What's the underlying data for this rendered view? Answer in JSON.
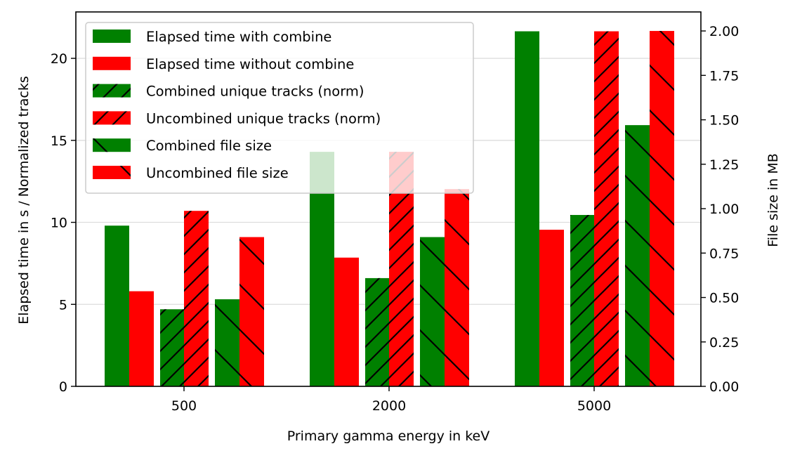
{
  "chart_data": {
    "type": "bar",
    "title": "",
    "xlabel": "Primary gamma energy in keV",
    "ylabel": "Elapsed time in s / Normalized tracks",
    "y2label": "File size in MB",
    "categories": [
      "500",
      "2000",
      "5000"
    ],
    "ylim": [
      0,
      22.83
    ],
    "y2lim": [
      0,
      2.107
    ],
    "yticks": [
      "0",
      "5",
      "10",
      "15",
      "20"
    ],
    "ytick_values": [
      0,
      5,
      10,
      15,
      20
    ],
    "y2ticks": [
      "0.00",
      "0.25",
      "0.50",
      "0.75",
      "1.00",
      "1.25",
      "1.50",
      "1.75",
      "2.00"
    ],
    "y2tick_values": [
      0,
      0.25,
      0.5,
      0.75,
      1.0,
      1.25,
      1.5,
      1.75,
      2.0
    ],
    "grid": "horizontal",
    "legend_position": "upper-left",
    "series": [
      {
        "name": "Elapsed time with combine",
        "axis": "left",
        "color": "#008000",
        "hatch": "none",
        "values": [
          9.8,
          14.3,
          21.65
        ]
      },
      {
        "name": "Elapsed time without combine",
        "axis": "left",
        "color": "#ff0000",
        "hatch": "none",
        "values": [
          5.8,
          7.85,
          9.55
        ]
      },
      {
        "name": "Combined unique tracks (norm)",
        "axis": "left",
        "color": "#008000",
        "hatch": "/",
        "values": [
          4.7,
          6.6,
          10.45
        ]
      },
      {
        "name": "Uncombined unique tracks (norm)",
        "axis": "left",
        "color": "#ff0000",
        "hatch": "/",
        "values": [
          10.7,
          14.3,
          21.65
        ]
      },
      {
        "name": "Combined file size",
        "axis": "right",
        "color": "#008000",
        "hatch": "\\",
        "values": [
          0.49,
          0.84,
          1.47
        ]
      },
      {
        "name": "Uncombined file size",
        "axis": "right",
        "color": "#ff0000",
        "hatch": "\\",
        "values": [
          0.84,
          1.11,
          2.0
        ]
      }
    ]
  }
}
